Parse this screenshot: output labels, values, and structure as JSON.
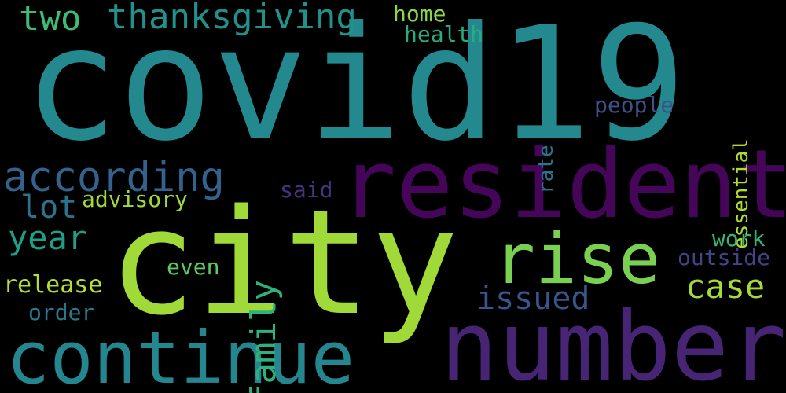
{
  "words": {
    "covid19": {
      "text": "covid19",
      "color": "#23898e"
    },
    "city": {
      "text": "city",
      "color": "#a0da39"
    },
    "resident": {
      "text": "resident",
      "color": "#450559"
    },
    "number": {
      "text": "number",
      "color": "#482475"
    },
    "continue": {
      "text": "continue",
      "color": "#24868e"
    },
    "rise": {
      "text": "rise",
      "color": "#7ad151"
    },
    "according": {
      "text": "according",
      "color": "#33638d"
    },
    "thanksgiving": {
      "text": "thanksgiving",
      "color": "#21918c"
    },
    "two": {
      "text": "two",
      "color": "#3fbc73"
    },
    "year": {
      "text": "year",
      "color": "#1f9f88"
    },
    "lot": {
      "text": "lot",
      "color": "#2c728e"
    },
    "case": {
      "text": "case",
      "color": "#a5db36"
    },
    "issued": {
      "text": "issued",
      "color": "#39568c"
    },
    "family": {
      "text": "family",
      "color": "#2db27d"
    },
    "release": {
      "text": "release",
      "color": "#b5de2b"
    },
    "order": {
      "text": "order",
      "color": "#2a788e"
    },
    "advisory": {
      "text": "advisory",
      "color": "#9fda3a"
    },
    "even": {
      "text": "even",
      "color": "#5ec962"
    },
    "said": {
      "text": "said",
      "color": "#46337f"
    },
    "home": {
      "text": "home",
      "color": "#8bd646"
    },
    "health": {
      "text": "health",
      "color": "#27ad81"
    },
    "people": {
      "text": "people",
      "color": "#3b528b"
    },
    "essential": {
      "text": "essential",
      "color": "#addc30"
    },
    "rate": {
      "text": "rate",
      "color": "#2c738e"
    },
    "work": {
      "text": "work",
      "color": "#35b779"
    },
    "outside": {
      "text": "outside",
      "color": "#414487"
    }
  }
}
